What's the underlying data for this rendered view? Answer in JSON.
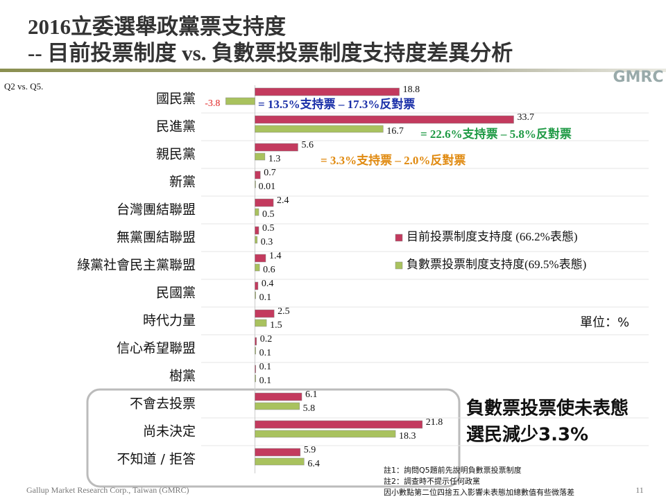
{
  "header": {
    "title_lines": [
      "2016立委選舉政黨票支持度",
      "-- 目前投票制度 vs. 負數票投票制度支持度差異分析"
    ],
    "logo": "GMRC",
    "question": "Q2 vs. Q5."
  },
  "chart_data": {
    "type": "hbar",
    "categories": [
      "國民黨",
      "民進黨",
      "親民黨",
      "新黨",
      "台灣團結聯盟",
      "無黨團結聯盟",
      "綠黨社會民主黨聯盟",
      "民國黨",
      "時代力量",
      "信心希望聯盟",
      "樹黨",
      "不會去投票",
      "尚未決定",
      "不知道 / 拒答"
    ],
    "series": [
      {
        "name": "目前投票制度支持度 (66.2%表態)",
        "color": "#c33a5e",
        "values": [
          18.8,
          33.7,
          5.6,
          0.7,
          2.4,
          0.5,
          1.4,
          0.4,
          2.5,
          0.2,
          0.1,
          6.1,
          21.8,
          5.9
        ]
      },
      {
        "name": "負數票投票制度支持度(69.5%表態)",
        "color": "#a9c25e",
        "values": [
          -3.8,
          16.7,
          1.3,
          0.01,
          0.5,
          0.3,
          0.6,
          0.1,
          1.5,
          0.1,
          0.1,
          5.8,
          18.3,
          6.4
        ]
      }
    ],
    "xlim": [
      -7,
      51
    ],
    "negative_label_color": "#e02020",
    "annotations": [
      {
        "text": "= 13.5%支持票 – 17.3%反對票",
        "color": "#1a2fa8"
      },
      {
        "text": "= 22.6%支持票 – 5.8%反對票",
        "color": "#1f9a45"
      },
      {
        "text": "= 3.3%支持票 – 2.0%反對票",
        "color": "#e08a10"
      }
    ],
    "unit": "單位：%"
  },
  "callout": [
    "負數票投票使未表態",
    "選民減少3.3%"
  ],
  "notes": [
    "註1：詢問Q5題前先說明負數票投票制度",
    "註2：調查時不提示任何政黨",
    "因小數點第二位四捨五入影響未表態加總數值有些微落差"
  ],
  "footer": {
    "source": "Gallup Market Research Corp., Taiwan (GMRC)",
    "page": "11"
  }
}
